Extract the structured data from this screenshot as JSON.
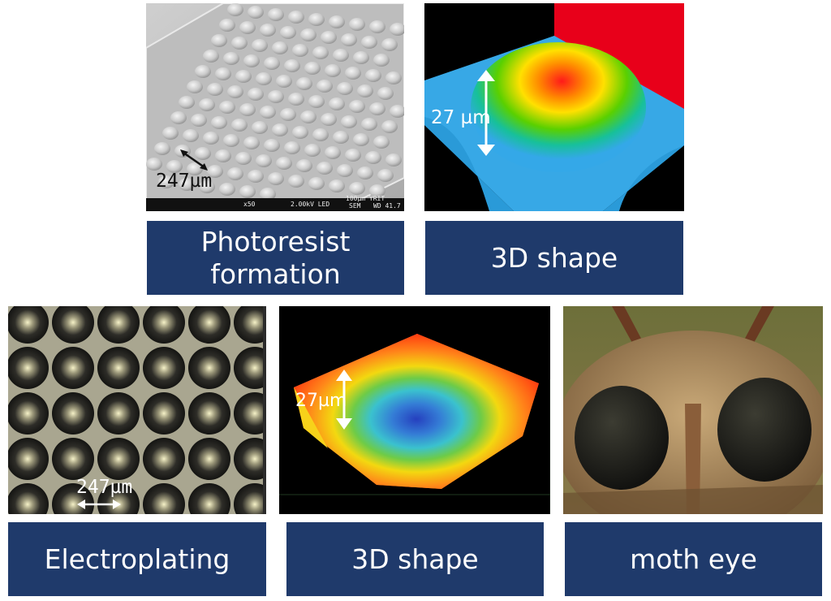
{
  "captions": {
    "photoresist_line1": "Photoresist",
    "photoresist_line2": "formation",
    "shape_top": "3D shape",
    "electroplating": "Electroplating",
    "shape_bottom": "3D shape",
    "moth_eye": "moth eye"
  },
  "labels": {
    "photoresist_pitch": "247µm",
    "dome_height": "27 µm",
    "electroplating_pitch": "247µm",
    "cavity_height": "27µm"
  },
  "sem_bar": {
    "magnification": "x50",
    "voltage": "2.00kV LED",
    "mode": "SEM",
    "scale": "100µm YRIT",
    "wd": "WD 41.7"
  },
  "colors": {
    "caption_bg": "#1f3a6b",
    "caption_text": "#ffffff"
  }
}
